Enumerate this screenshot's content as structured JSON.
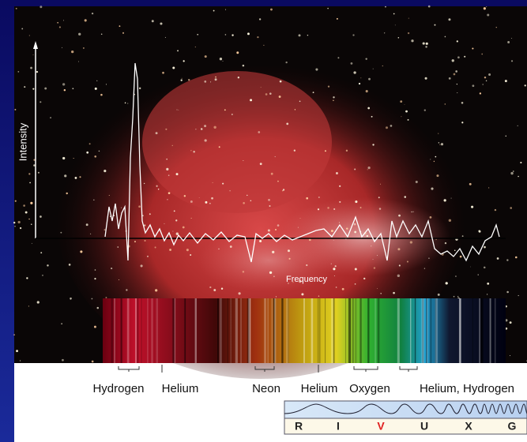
{
  "axis_labels": {
    "y": "Intensity",
    "x": "Frequency"
  },
  "lines": [
    "Hydrogen",
    "Helium",
    "Neon",
    "Helium",
    "Oxygen",
    "Helium, Hydrogen"
  ],
  "bands": [
    "R",
    "I",
    "V",
    "U",
    "X",
    "G"
  ]
}
